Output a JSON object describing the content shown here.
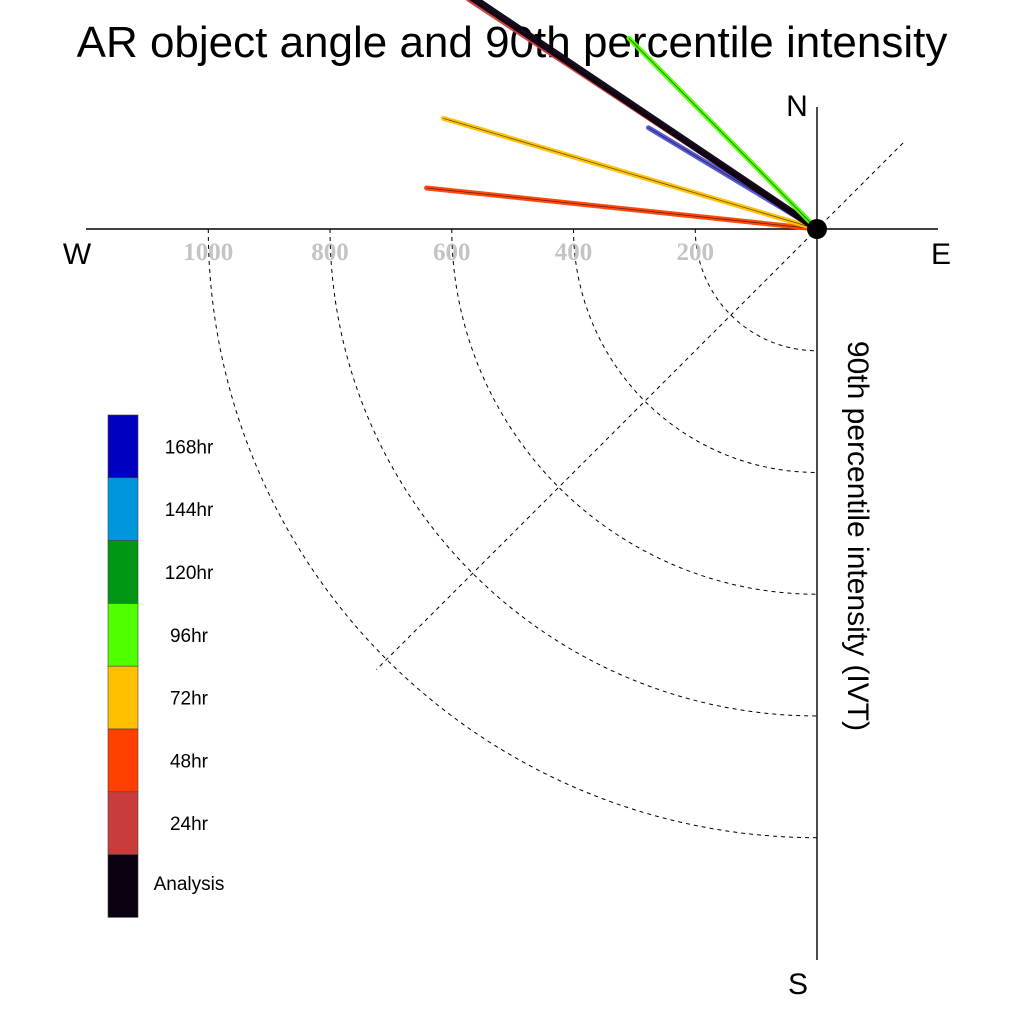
{
  "chart_data": {
    "type": "polar-line",
    "title": "AR object angle and 90th percentile intensity",
    "radial_label": "90th percentile intensity (IVT)",
    "compass": {
      "north": "N",
      "south": "S",
      "east": "E",
      "west": "W"
    },
    "radial_ticks": [
      200,
      400,
      600,
      800,
      1000
    ],
    "radial_tick_labels": [
      "200",
      "400",
      "600",
      "800",
      "1000"
    ],
    "radial_max": 1200,
    "grid_diagonal": "NE-SW",
    "series": [
      {
        "name": "48hr",
        "color": "#ff4000",
        "angle_deg": 276.0,
        "intensity": 645
      },
      {
        "name": "72hr",
        "color": "#ffc000",
        "angle_deg": 286.5,
        "intensity": 640
      },
      {
        "name": "168hr",
        "color": "#0000c0",
        "angle_deg": 301.0,
        "intensity": 323
      },
      {
        "name": "24hr",
        "color": "#c83c3c",
        "angle_deg": 303.4,
        "intensity": 686
      },
      {
        "name": "Analysis",
        "color": "#0a0010",
        "angle_deg": 303.9,
        "intensity": 684
      },
      {
        "name": "96hr",
        "color": "#50ff00",
        "angle_deg": 315.4,
        "intensity": 440
      }
    ],
    "legend": [
      {
        "label": "168hr",
        "color": "#0000c0"
      },
      {
        "label": "144hr",
        "color": "#0096dc"
      },
      {
        "label": "120hr",
        "color": "#009614"
      },
      {
        "label": "96hr",
        "color": "#50ff00"
      },
      {
        "label": "72hr",
        "color": "#ffc000"
      },
      {
        "label": "48hr",
        "color": "#ff4000"
      },
      {
        "label": "24hr",
        "color": "#c83c3c"
      },
      {
        "label": "Analysis",
        "color": "#0a0010"
      }
    ]
  }
}
